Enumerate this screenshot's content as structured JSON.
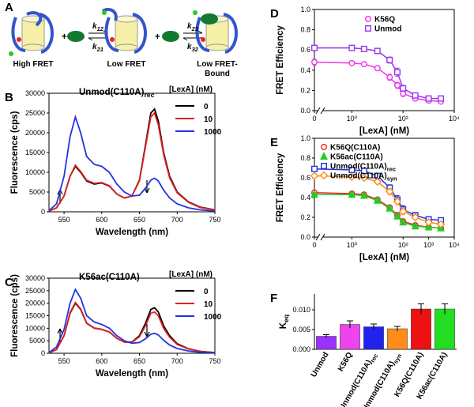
{
  "scheme": {
    "panel": "A",
    "states": [
      [
        "High FRET"
      ],
      [
        "Low FRET"
      ],
      [
        "Low FRET-",
        "Bound"
      ]
    ],
    "rates": [
      {
        "text": "k",
        "sub": "12"
      },
      {
        "text": "k",
        "sub": "21"
      },
      {
        "text": "k",
        "sub": "23"
      },
      {
        "text": "k",
        "sub": "32"
      }
    ]
  },
  "chart_data": [
    {
      "type": "line",
      "panel": "B",
      "annotation": {
        "text": "Unmod(C110A)",
        "sub": "rec"
      },
      "legend_title": "[LexA] (nM)",
      "xlabel": "Wavelength (nm)",
      "ylabel": "Fluorescence (cps)",
      "x": [
        530,
        540,
        550,
        558,
        565,
        572,
        580,
        590,
        600,
        610,
        620,
        630,
        640,
        650,
        658,
        665,
        670,
        675,
        682,
        690,
        700,
        715,
        730,
        750
      ],
      "xlim": [
        530,
        750
      ],
      "xticks": [
        550,
        600,
        650,
        700,
        750
      ],
      "ylim": [
        0,
        30000
      ],
      "yticks": [
        0,
        5000,
        10000,
        15000,
        20000,
        25000,
        30000
      ],
      "series": [
        {
          "name": "0",
          "color": "#000000",
          "values": [
            200,
            1000,
            4000,
            9000,
            11500,
            10000,
            7800,
            7000,
            7300,
            6500,
            4500,
            3500,
            4000,
            8000,
            17000,
            25000,
            26000,
            23000,
            15000,
            9000,
            5000,
            2500,
            1200,
            500
          ]
        },
        {
          "name": "10",
          "color": "#e02020",
          "values": [
            200,
            1000,
            4000,
            9000,
            11800,
            10200,
            8000,
            7200,
            7400,
            6600,
            4500,
            3500,
            4000,
            7800,
            16500,
            24000,
            25000,
            22000,
            14500,
            8600,
            4800,
            2400,
            1100,
            500
          ]
        },
        {
          "name": "1000",
          "color": "#2233dd",
          "values": [
            300,
            2000,
            9000,
            19000,
            24000,
            20000,
            14000,
            12000,
            11500,
            10000,
            7000,
            5000,
            4000,
            4200,
            6000,
            8000,
            8500,
            7800,
            5500,
            3500,
            2000,
            1000,
            500,
            200
          ]
        }
      ]
    },
    {
      "type": "line",
      "panel": "C",
      "annotation": "K56ac(C110A)",
      "legend_title": "[LexA] (nM)",
      "xlabel": "Wavelength (nm)",
      "ylabel": "Fluorescence (cps)",
      "x": [
        530,
        540,
        550,
        558,
        565,
        572,
        580,
        590,
        600,
        610,
        620,
        630,
        640,
        650,
        658,
        665,
        670,
        675,
        682,
        690,
        700,
        715,
        730,
        750
      ],
      "xlim": [
        530,
        750
      ],
      "xticks": [
        550,
        600,
        650,
        700,
        750
      ],
      "ylim": [
        0,
        30000
      ],
      "yticks": [
        0,
        5000,
        10000,
        15000,
        20000,
        25000,
        30000
      ],
      "series": [
        {
          "name": "0",
          "color": "#000000",
          "values": [
            200,
            1500,
            7000,
            16000,
            20000,
            17500,
            12000,
            10000,
            9500,
            8500,
            6000,
            4500,
            4500,
            7000,
            12000,
            17500,
            18200,
            16500,
            11000,
            7000,
            3800,
            1800,
            800,
            300
          ]
        },
        {
          "name": "10",
          "color": "#e02020",
          "values": [
            200,
            1500,
            7000,
            16300,
            20300,
            17700,
            12100,
            10100,
            9600,
            8500,
            6000,
            4500,
            4400,
            6600,
            11000,
            16000,
            16500,
            15000,
            10000,
            6400,
            3500,
            1700,
            800,
            300
          ]
        },
        {
          "name": "1000",
          "color": "#2233dd",
          "values": [
            300,
            2500,
            9500,
            20000,
            25500,
            22000,
            15000,
            12500,
            11500,
            10000,
            7000,
            5000,
            4000,
            4300,
            5800,
            7600,
            8000,
            7300,
            5200,
            3300,
            1900,
            900,
            400,
            200
          ]
        }
      ]
    },
    {
      "type": "scatter",
      "panel": "D",
      "xlabel": "[LexA] (nM)",
      "ylabel": "FRET Efficiency",
      "xscale": "log",
      "x": [
        0,
        1,
        3,
        10,
        30,
        60,
        100,
        300,
        1000,
        3000
      ],
      "xlim": [
        0,
        10000
      ],
      "xticks": [
        {
          "value": 0,
          "label": "0"
        },
        {
          "value": 1,
          "label": "10⁰"
        },
        {
          "value": 100,
          "label": "10²"
        },
        {
          "value": 10000,
          "label": "10⁴"
        }
      ],
      "ylim": [
        0,
        1
      ],
      "yticks": [
        {
          "value": 0,
          "label": "0.0"
        },
        {
          "value": 0.2,
          "label": "0.2"
        },
        {
          "value": 0.4,
          "label": "0.4"
        },
        {
          "value": 0.6,
          "label": "0.6"
        },
        {
          "value": 0.8,
          "label": "0.8"
        },
        {
          "value": 1,
          "label": "1.0"
        }
      ],
      "series": [
        {
          "name": "K56Q",
          "color": "#ee33ee",
          "marker": "circle",
          "values": [
            0.48,
            0.47,
            0.46,
            0.42,
            0.33,
            0.25,
            0.17,
            0.12,
            0.1,
            0.09
          ],
          "errors": [
            0.03,
            0.02,
            0.02,
            0.02,
            0.03,
            0.03,
            0.03,
            0.02,
            0.01,
            0.01
          ]
        },
        {
          "name": "Unmod",
          "color": "#9933ee",
          "marker": "square",
          "values": [
            0.62,
            0.62,
            0.61,
            0.59,
            0.5,
            0.38,
            0.22,
            0.15,
            0.12,
            0.12
          ],
          "errors": [
            0.02,
            0.02,
            0.02,
            0.02,
            0.03,
            0.04,
            0.03,
            0.02,
            0.01,
            0.01
          ]
        }
      ]
    },
    {
      "type": "scatter",
      "panel": "E",
      "xlabel": "[LexA] (nM)",
      "ylabel": "FRET Efficiency",
      "xscale": "log",
      "x": [
        0,
        1,
        3,
        10,
        30,
        60,
        100,
        300,
        1000,
        3000
      ],
      "xlim": [
        0,
        10000
      ],
      "xticks": [
        {
          "value": 0,
          "label": "0"
        },
        {
          "value": 1,
          "label": "10⁰"
        },
        {
          "value": 100,
          "label": "10²"
        },
        {
          "value": 1000,
          "label": "10³"
        },
        {
          "value": 10000,
          "label": "10⁴"
        }
      ],
      "ylim": [
        0,
        1
      ],
      "yticks": [
        {
          "value": 0,
          "label": "0.0"
        },
        {
          "value": 0.2,
          "label": "0.2"
        },
        {
          "value": 0.4,
          "label": "0.4"
        },
        {
          "value": 0.6,
          "label": "0.6"
        },
        {
          "value": 0.8,
          "label": "0.8"
        },
        {
          "value": 1,
          "label": "1.0"
        }
      ],
      "series": [
        {
          "name": "K56Q(C110A)",
          "color": "#ee2222",
          "marker": "circle",
          "values": [
            0.45,
            0.44,
            0.43,
            0.38,
            0.3,
            0.22,
            0.16,
            0.12,
            0.1,
            0.09
          ],
          "errors": [
            0.02,
            0.02,
            0.02,
            0.02,
            0.02,
            0.03,
            0.02,
            0.02,
            0.01,
            0.01
          ]
        },
        {
          "name": "K56ac(C110A)",
          "color": "#22cc22",
          "marker": "triangle",
          "filled": true,
          "values": [
            0.43,
            0.43,
            0.42,
            0.37,
            0.29,
            0.21,
            0.15,
            0.11,
            0.1,
            0.09
          ],
          "errors": [
            0.02,
            0.02,
            0.02,
            0.02,
            0.02,
            0.02,
            0.02,
            0.02,
            0.01,
            0.01
          ]
        },
        {
          "name": {
            "text": "Unmod(C110A)",
            "sub": "rec"
          },
          "color": "#2233dd",
          "marker": "square",
          "values": [
            0.69,
            0.68,
            0.67,
            0.62,
            0.5,
            0.38,
            0.28,
            0.22,
            0.18,
            0.17
          ],
          "errors": [
            0.02,
            0.02,
            0.02,
            0.02,
            0.03,
            0.04,
            0.04,
            0.03,
            0.02,
            0.02
          ]
        },
        {
          "name": {
            "text": "Unmod(C110A)",
            "sub": "syn"
          },
          "color": "#ff8c1a",
          "marker": "diamond",
          "values": [
            0.62,
            0.61,
            0.6,
            0.56,
            0.46,
            0.36,
            0.26,
            0.2,
            0.15,
            0.13
          ],
          "errors": [
            0.02,
            0.02,
            0.02,
            0.02,
            0.03,
            0.03,
            0.03,
            0.02,
            0.02,
            0.01
          ]
        }
      ]
    },
    {
      "type": "bar",
      "panel": "F",
      "ylabel": {
        "text": "K",
        "sub": "eq"
      },
      "categories": [
        "Unmod",
        "K56Q",
        {
          "text": "Unmod(C110A)",
          "sub": "rec"
        },
        {
          "text": "Unmod(C110A)",
          "sub": "syn"
        },
        "K56Q(C110A)",
        "K56ac(C110A)"
      ],
      "values": [
        0.0033,
        0.0063,
        0.0057,
        0.0052,
        0.0102,
        0.0102
      ],
      "errors": [
        0.0004,
        0.0009,
        0.0007,
        0.0006,
        0.0013,
        0.0013
      ],
      "colors": [
        "#9b30ff",
        "#ee44ee",
        "#2222ee",
        "#ff8c1a",
        "#ee1111",
        "#22dd22"
      ],
      "ylim": [
        0,
        0.014
      ],
      "yticks": [
        {
          "value": 0,
          "label": "0.000"
        },
        {
          "value": 0.005,
          "label": "0.005"
        },
        {
          "value": 0.01,
          "label": "0.010"
        }
      ]
    }
  ]
}
